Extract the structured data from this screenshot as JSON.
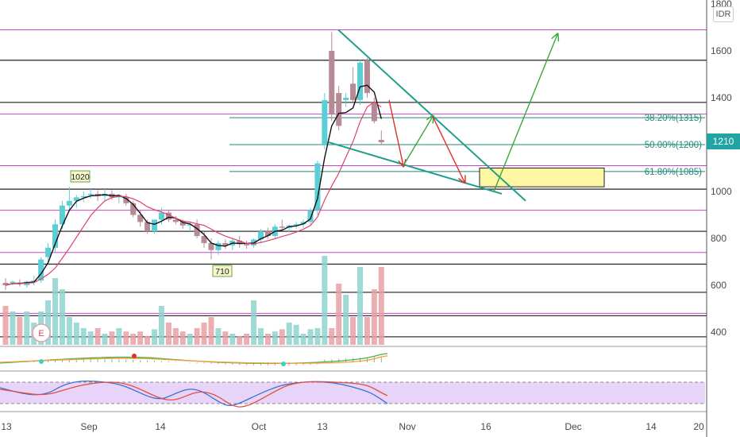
{
  "chart_data": {
    "type": "candlestick",
    "currency": "IDR",
    "last_price": "1210",
    "yaxis": {
      "min": 300,
      "max": 1800,
      "ticks": [
        "400",
        "600",
        "800",
        "1000",
        "1200",
        "1400",
        "1600",
        "1800"
      ]
    },
    "xaxis": {
      "ticks": [
        "13",
        "Sep",
        "14",
        "Oct",
        "13",
        "Nov",
        "16",
        "Dec",
        "14",
        "20"
      ]
    },
    "candles": [
      {
        "o": 610,
        "h": 630,
        "l": 580,
        "c": 600
      },
      {
        "o": 610,
        "h": 620,
        "l": 600,
        "c": 615
      },
      {
        "o": 612,
        "h": 625,
        "l": 595,
        "c": 605
      },
      {
        "o": 600,
        "h": 620,
        "l": 590,
        "c": 615
      },
      {
        "o": 615,
        "h": 640,
        "l": 600,
        "c": 620
      },
      {
        "o": 620,
        "h": 720,
        "l": 610,
        "c": 710
      },
      {
        "o": 720,
        "h": 780,
        "l": 700,
        "c": 760
      },
      {
        "o": 760,
        "h": 880,
        "l": 740,
        "c": 860
      },
      {
        "o": 860,
        "h": 960,
        "l": 840,
        "c": 940
      },
      {
        "o": 940,
        "h": 1020,
        "l": 920,
        "c": 960
      },
      {
        "o": 960,
        "h": 985,
        "l": 930,
        "c": 975
      },
      {
        "o": 975,
        "h": 1000,
        "l": 955,
        "c": 980
      },
      {
        "o": 985,
        "h": 1010,
        "l": 970,
        "c": 990
      },
      {
        "o": 990,
        "h": 1005,
        "l": 960,
        "c": 980
      },
      {
        "o": 980,
        "h": 1010,
        "l": 960,
        "c": 990
      },
      {
        "o": 990,
        "h": 1005,
        "l": 965,
        "c": 975
      },
      {
        "o": 975,
        "h": 990,
        "l": 950,
        "c": 985
      },
      {
        "o": 975,
        "h": 990,
        "l": 940,
        "c": 950
      },
      {
        "o": 950,
        "h": 960,
        "l": 890,
        "c": 900
      },
      {
        "o": 900,
        "h": 920,
        "l": 850,
        "c": 870
      },
      {
        "o": 870,
        "h": 880,
        "l": 820,
        "c": 830
      },
      {
        "o": 830,
        "h": 880,
        "l": 820,
        "c": 880
      },
      {
        "o": 880,
        "h": 930,
        "l": 860,
        "c": 910
      },
      {
        "o": 910,
        "h": 920,
        "l": 870,
        "c": 880
      },
      {
        "o": 880,
        "h": 895,
        "l": 860,
        "c": 870
      },
      {
        "o": 870,
        "h": 880,
        "l": 840,
        "c": 855
      },
      {
        "o": 855,
        "h": 870,
        "l": 830,
        "c": 860
      },
      {
        "o": 860,
        "h": 880,
        "l": 800,
        "c": 810
      },
      {
        "o": 810,
        "h": 830,
        "l": 760,
        "c": 780
      },
      {
        "o": 780,
        "h": 800,
        "l": 710,
        "c": 750
      },
      {
        "o": 750,
        "h": 790,
        "l": 730,
        "c": 780
      },
      {
        "o": 780,
        "h": 795,
        "l": 755,
        "c": 770
      },
      {
        "o": 770,
        "h": 800,
        "l": 750,
        "c": 790
      },
      {
        "o": 790,
        "h": 810,
        "l": 760,
        "c": 775
      },
      {
        "o": 775,
        "h": 790,
        "l": 755,
        "c": 770
      },
      {
        "o": 770,
        "h": 800,
        "l": 760,
        "c": 795
      },
      {
        "o": 795,
        "h": 840,
        "l": 780,
        "c": 830
      },
      {
        "o": 830,
        "h": 845,
        "l": 800,
        "c": 810
      },
      {
        "o": 810,
        "h": 860,
        "l": 800,
        "c": 850
      },
      {
        "o": 850,
        "h": 880,
        "l": 830,
        "c": 845
      },
      {
        "o": 845,
        "h": 860,
        "l": 825,
        "c": 855
      },
      {
        "o": 855,
        "h": 870,
        "l": 840,
        "c": 860
      },
      {
        "o": 860,
        "h": 880,
        "l": 845,
        "c": 870
      },
      {
        "o": 870,
        "h": 930,
        "l": 860,
        "c": 920
      },
      {
        "o": 920,
        "h": 1130,
        "l": 900,
        "c": 1120
      },
      {
        "o": 1200,
        "h": 1420,
        "l": 1180,
        "c": 1390
      },
      {
        "o": 1600,
        "h": 1680,
        "l": 1300,
        "c": 1330
      },
      {
        "o": 1420,
        "h": 1450,
        "l": 1260,
        "c": 1280
      },
      {
        "o": 1390,
        "h": 1420,
        "l": 1360,
        "c": 1400
      },
      {
        "o": 1460,
        "h": 1530,
        "l": 1380,
        "c": 1390
      },
      {
        "o": 1390,
        "h": 1560,
        "l": 1370,
        "c": 1550
      },
      {
        "o": 1560,
        "h": 1570,
        "l": 1400,
        "c": 1420
      },
      {
        "o": 1380,
        "h": 1400,
        "l": 1290,
        "c": 1300
      },
      {
        "o": 1220,
        "h": 1260,
        "l": 1200,
        "c": 1210
      }
    ],
    "volume_relative": [
      0.35,
      0.3,
      0.25,
      0.3,
      0.2,
      0.3,
      0.4,
      0.6,
      0.5,
      0.25,
      0.2,
      0.15,
      0.12,
      0.15,
      0.1,
      0.12,
      0.15,
      0.12,
      0.1,
      0.12,
      0.08,
      0.14,
      0.35,
      0.2,
      0.15,
      0.12,
      0.1,
      0.15,
      0.2,
      0.25,
      0.15,
      0.12,
      0.1,
      0.08,
      0.1,
      0.4,
      0.15,
      0.1,
      0.12,
      0.14,
      0.2,
      0.18,
      0.1,
      0.14,
      0.15,
      0.8,
      0.15,
      0.55,
      0.45,
      0.25,
      0.7,
      0.25,
      0.5,
      0.7
    ],
    "annotations": {
      "high_label": "1020",
      "low_label": "710",
      "earnings_label": "E"
    },
    "fibonacci": [
      {
        "label": "38.20%(1315)",
        "price": 1315
      },
      {
        "label": "50.00%(1200)",
        "price": 1200
      },
      {
        "label": "61.80%(1085)",
        "price": 1085
      }
    ],
    "horizontal_lines": {
      "black": [
        1560,
        1380,
        1010,
        830,
        690,
        570,
        470,
        380
      ],
      "magenta": [
        1690,
        1330,
        1110,
        920,
        740,
        480
      ]
    },
    "target_zone": {
      "from": 1020,
      "to": 1100
    },
    "indicator_ticks": [
      "0"
    ],
    "stoch_ticks": [
      "100.00",
      "0.00"
    ]
  },
  "colors": {
    "up": "#5ccfd6",
    "down": "#b58a95",
    "fib": "#1f8a7a",
    "magenta": "#c448c4",
    "trend": "#1e9e8c",
    "arrow_red": "#e0302a",
    "arrow_green": "#3aa83a",
    "zone": "#fdf6a3",
    "ma_black": "#111111",
    "ma_red": "#e0406a"
  }
}
